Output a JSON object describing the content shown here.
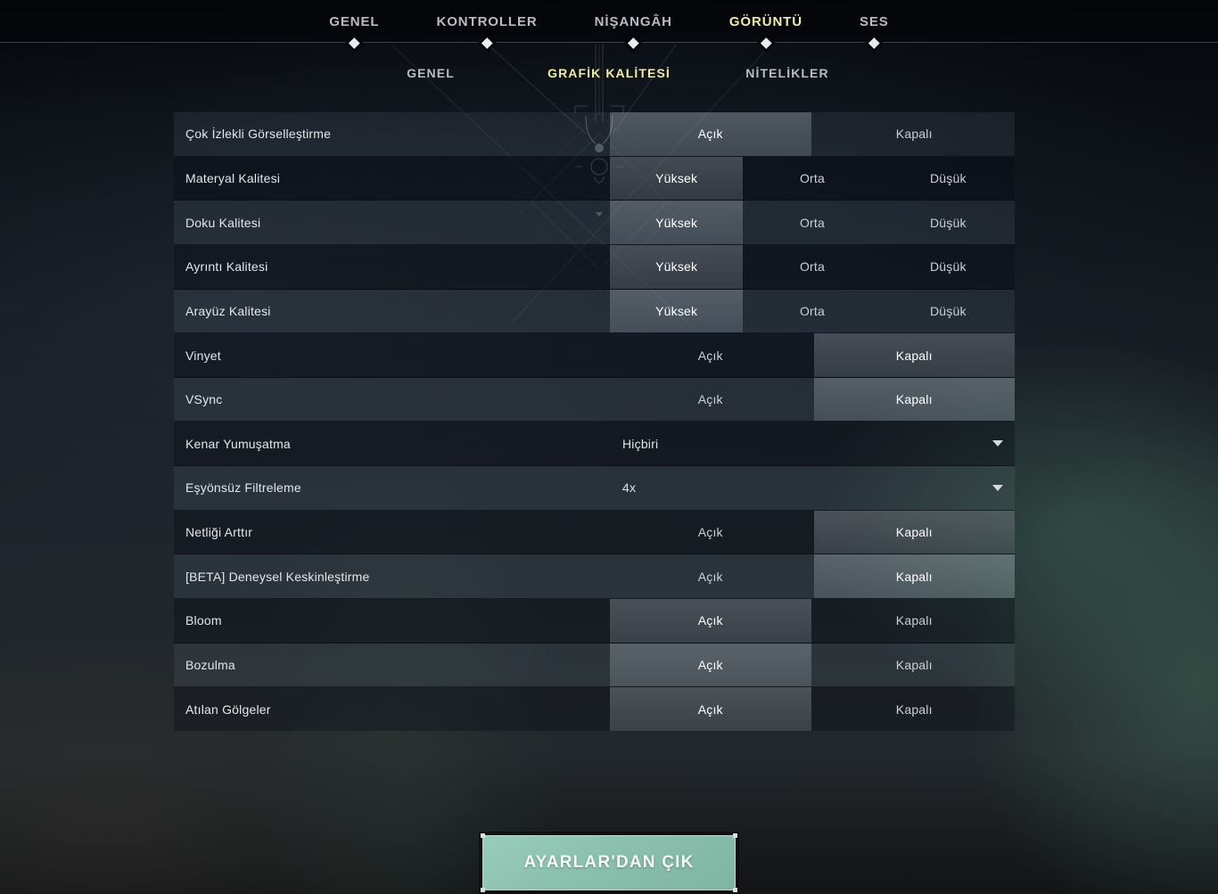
{
  "nav": {
    "tabs": [
      {
        "label": "GENEL",
        "active": false
      },
      {
        "label": "KONTROLLER",
        "active": false
      },
      {
        "label": "NİŞANGÂH",
        "active": false
      },
      {
        "label": "GÖRÜNTÜ",
        "active": true
      },
      {
        "label": "SES",
        "active": false
      }
    ]
  },
  "subnav": {
    "tabs": [
      {
        "label": "GENEL",
        "active": false
      },
      {
        "label": "GRAFİK KALİTESİ",
        "active": true
      },
      {
        "label": "NİTELİKLER",
        "active": false
      }
    ]
  },
  "settings": {
    "rows": [
      {
        "label": "Çok İzlekli Görselleştirme",
        "type": "toggle",
        "options": [
          "Açık",
          "Kapalı"
        ],
        "selected": "Açık"
      },
      {
        "label": "Materyal Kalitesi",
        "type": "toggle",
        "options": [
          "Yüksek",
          "Orta",
          "Düşük"
        ],
        "selected": "Yüksek"
      },
      {
        "label": "Doku Kalitesi",
        "type": "toggle",
        "options": [
          "Yüksek",
          "Orta",
          "Düşük"
        ],
        "selected": "Yüksek"
      },
      {
        "label": "Ayrıntı Kalitesi",
        "type": "toggle",
        "options": [
          "Yüksek",
          "Orta",
          "Düşük"
        ],
        "selected": "Yüksek"
      },
      {
        "label": "Arayüz Kalitesi",
        "type": "toggle",
        "options": [
          "Yüksek",
          "Orta",
          "Düşük"
        ],
        "selected": "Yüksek"
      },
      {
        "label": "Vinyet",
        "type": "toggle",
        "options": [
          "Açık",
          "Kapalı"
        ],
        "selected": "Kapalı"
      },
      {
        "label": "VSync",
        "type": "toggle",
        "options": [
          "Açık",
          "Kapalı"
        ],
        "selected": "Kapalı"
      },
      {
        "label": "Kenar Yumuşatma",
        "type": "select",
        "value": "Hiçbiri"
      },
      {
        "label": "Eşyönsüz Filtreleme",
        "type": "select",
        "value": "4x"
      },
      {
        "label": "Netliği Arttır",
        "type": "toggle",
        "options": [
          "Açık",
          "Kapalı"
        ],
        "selected": "Kapalı"
      },
      {
        "label": "[BETA] Deneysel Keskinleştirme",
        "type": "toggle",
        "options": [
          "Açık",
          "Kapalı"
        ],
        "selected": "Kapalı"
      },
      {
        "label": "Bloom",
        "type": "toggle",
        "options": [
          "Açık",
          "Kapalı"
        ],
        "selected": "Açık"
      },
      {
        "label": "Bozulma",
        "type": "toggle",
        "options": [
          "Açık",
          "Kapalı"
        ],
        "selected": "Açık"
      },
      {
        "label": "Atılan Gölgeler",
        "type": "toggle",
        "options": [
          "Açık",
          "Kapalı"
        ],
        "selected": "Açık"
      }
    ]
  },
  "footer": {
    "exit_label": "AYARLAR'DAN ÇIK"
  },
  "colors": {
    "accent_active": "#f1eda6",
    "tab_inactive": "#b7bcc3",
    "button_teal": "#8ac0ae",
    "selected_overlay": "rgba(218,230,238,0.24)"
  }
}
